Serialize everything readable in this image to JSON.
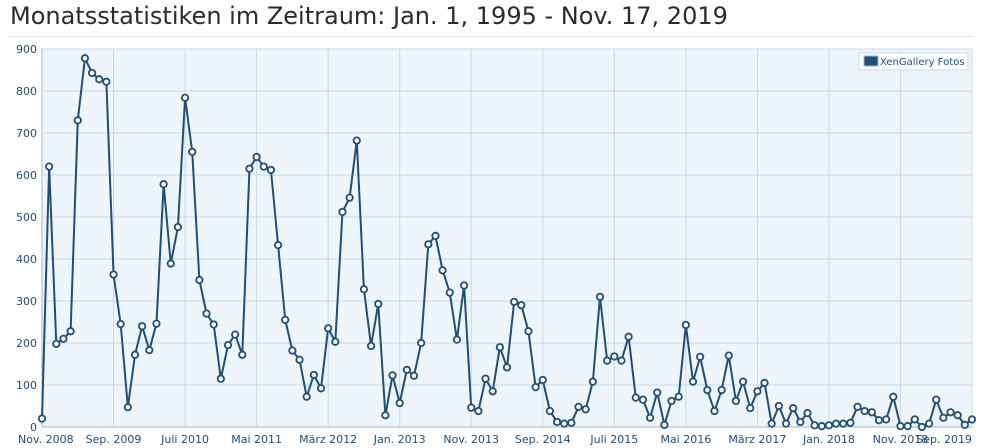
{
  "page": {
    "title": "Monatsstatistiken im Zeitraum: Jan. 1, 1995 - Nov. 17, 2019"
  },
  "chart_data": {
    "type": "line",
    "title": "",
    "xlabel": "",
    "ylabel": "",
    "ylim": [
      0,
      900
    ],
    "yticks": [
      0,
      100,
      200,
      300,
      400,
      500,
      600,
      700,
      800,
      900
    ],
    "xtick_labels": [
      "Nov. 2008",
      "Sep. 2009",
      "Juli 2010",
      "Mai 2011",
      "März 2012",
      "Jan. 2013",
      "Nov. 2013",
      "Sep. 2014",
      "Juli 2015",
      "Mai 2016",
      "März 2017",
      "Jan. 2018",
      "Nov. 2018",
      "Sep. 2019"
    ],
    "xtick_every_months": 10,
    "grid": true,
    "legend_position": "top-right",
    "colors": {
      "line": "#1f4e79",
      "marker_fill": "#ffffff",
      "plot_bg": "#eef5fb",
      "grid": "#c9d9e8"
    },
    "series": [
      {
        "name": "XenGallery Fotos",
        "start": "Nov. 2008",
        "values": [
          20,
          620,
          198,
          210,
          228,
          730,
          878,
          843,
          828,
          822,
          363,
          245,
          47,
          172,
          240,
          183,
          246,
          578,
          389,
          476,
          784,
          655,
          350,
          270,
          244,
          115,
          195,
          220,
          172,
          615,
          643,
          620,
          612,
          433,
          255,
          182,
          160,
          72,
          124,
          92,
          235,
          203,
          512,
          546,
          682,
          328,
          193,
          293,
          28,
          123,
          57,
          136,
          122,
          200,
          435,
          455,
          373,
          320,
          208,
          337,
          46,
          38,
          115,
          85,
          190,
          142,
          298,
          290,
          228,
          95,
          112,
          38,
          12,
          8,
          10,
          48,
          42,
          108,
          310,
          158,
          168,
          158,
          215,
          70,
          65,
          22,
          82,
          5,
          62,
          72,
          243,
          108,
          167,
          88,
          38,
          88,
          170,
          62,
          108,
          45,
          85,
          105,
          8,
          50,
          8,
          45,
          12,
          33,
          4,
          2,
          4,
          8,
          8,
          10,
          48,
          38,
          35,
          16,
          18,
          72,
          2,
          2,
          18,
          0,
          8,
          65,
          22,
          35,
          28,
          5,
          18
        ]
      }
    ]
  }
}
